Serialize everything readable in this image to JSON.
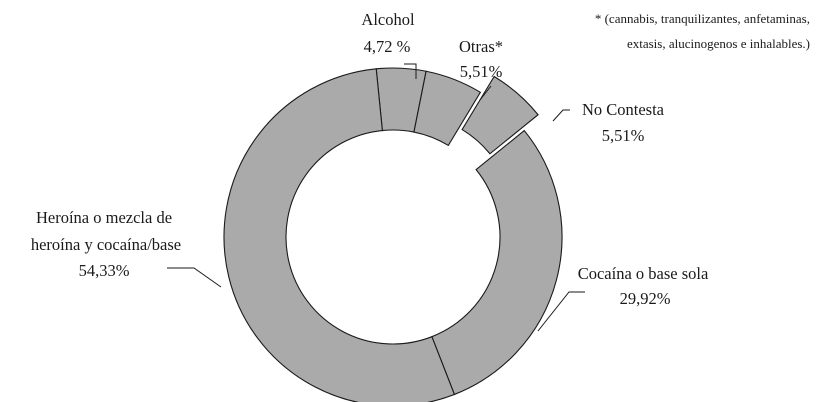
{
  "chart_data": {
    "type": "pie",
    "variant": "donut",
    "slices": [
      {
        "label_lines": [
          "Alcohol"
        ],
        "value_text": "4,72 %",
        "value": 4.72,
        "exploded": false
      },
      {
        "label_lines": [
          "Otras*"
        ],
        "value_text": "5,51%",
        "value": 5.51,
        "exploded": false
      },
      {
        "label_lines": [
          "No Contesta"
        ],
        "value_text": "5,51%",
        "value": 5.51,
        "exploded": true
      },
      {
        "label_lines": [
          "Cocaína o base sola"
        ],
        "value_text": "29,92%",
        "value": 29.92,
        "exploded": false
      },
      {
        "label_lines": [
          "Heroína o mezcla de",
          "heroína y cocaína/base"
        ],
        "value_text": "54,33%",
        "value": 54.33,
        "exploded": false
      }
    ],
    "footnote_lines": [
      "* (cannabis, tranquilizantes, anfetaminas,",
      "extasis, alucinogenos e inhalables.)"
    ],
    "colors": {
      "slice_fill": "#aaaaaa",
      "stroke": "#1a1a1a",
      "background": "#ffffff"
    }
  }
}
